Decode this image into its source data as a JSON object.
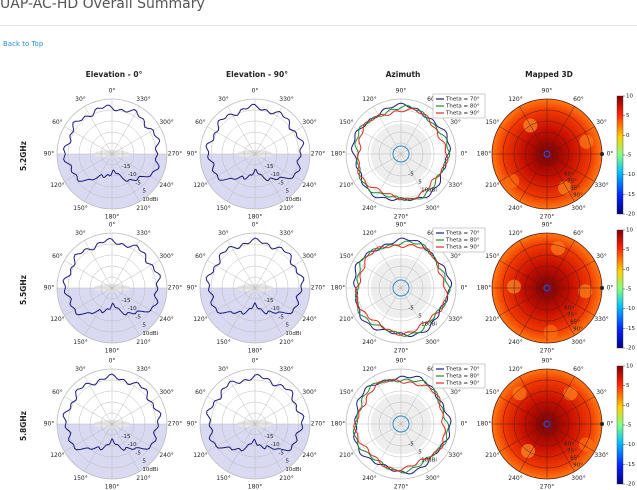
{
  "header": {
    "title": "UAP-AC-HD Overall Summary",
    "back_link": "Back to Top"
  },
  "summary": {
    "columns": [
      "Elevation - 0°",
      "Elevation - 90°",
      "Azimuth",
      "Mapped 3D"
    ],
    "rows": [
      "5.2GHz",
      "5.5GHz",
      "5.8GHz"
    ]
  },
  "elevation_plot": {
    "angle_labels": [
      "0°",
      "30°",
      "60°",
      "90°",
      "120°",
      "150°",
      "180°",
      "210°",
      "240°",
      "270°",
      "300°",
      "330°"
    ],
    "radial_labels": [
      "-15",
      "-10",
      "-5",
      "5",
      "10dBi"
    ]
  },
  "azimuth_plot": {
    "angle_labels": [
      "0°",
      "30°",
      "60°",
      "90°",
      "120°",
      "150°",
      "180°",
      "210°",
      "240°",
      "270°",
      "300°",
      "330°"
    ],
    "radial_labels": [
      "-5",
      "5",
      "10dBi"
    ],
    "legend": [
      "Theta = 70°",
      "Theta = 80°",
      "Theta = 90°"
    ]
  },
  "mapped_3d": {
    "angle_labels": [
      "0°",
      "30°",
      "60°",
      "90°",
      "120°",
      "150°",
      "180°",
      "210°",
      "240°",
      "270°",
      "300°",
      "330°"
    ],
    "theta_labels": [
      "60°",
      "75°",
      "85°",
      "90°"
    ],
    "colorbar_ticks": [
      "10",
      "5",
      "0",
      "-5",
      "-10",
      "-15",
      "-20"
    ]
  }
}
